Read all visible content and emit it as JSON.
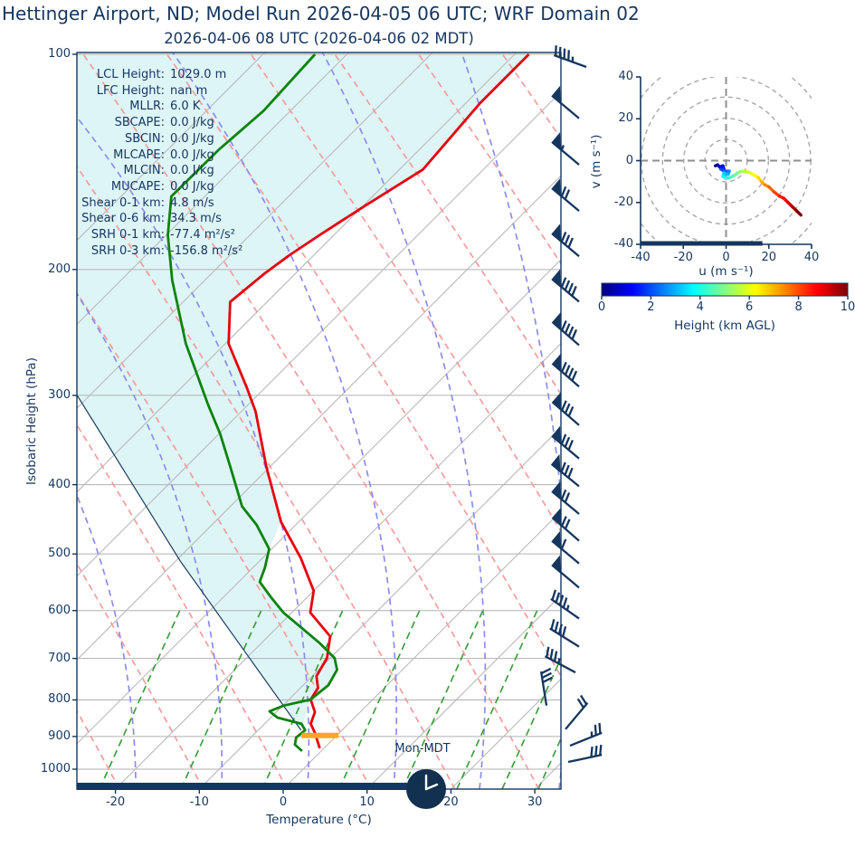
{
  "header": {
    "title": "Hettinger Airport, ND; Model Run 2026-04-05 06 UTC; WRF Domain 02",
    "subtitle": "2026-04-06 08 UTC  (2026-04-06 02 MDT)"
  },
  "colors": {
    "navy": "#15365f",
    "temperature_line": "#e8000d",
    "dewpoint_line": "#0b830b",
    "parcel_line": "#1b3a5f",
    "dry_adiabat": "#f59c9c",
    "moist_adiabat": "#8c8cee",
    "mixing_line": "#3f9f3f",
    "isotherm": "#b9b9b9",
    "pressure_line": "#b0b0b0",
    "shade_fill": "#def5f6",
    "lcl_bar": "#ffa81f",
    "hodo_grid": "#a8a8a8",
    "hodo_cross": "#8f8f8f"
  },
  "skewt": {
    "x_axis": {
      "label": "Temperature (°C)",
      "ticks": [
        -20,
        -10,
        0,
        10,
        20,
        30
      ]
    },
    "y_axis": {
      "label": "Isobaric Height (hPa)",
      "ticks": [
        100,
        200,
        300,
        400,
        500,
        600,
        700,
        800,
        900,
        1000
      ]
    },
    "surface_clock_label": "Mon-MDT",
    "stats": [
      {
        "label": "LCL Height:",
        "value": "1029.0 m"
      },
      {
        "label": "LFC Height:",
        "value": "nan m"
      },
      {
        "label": "MLLR:",
        "value": "6.0 K"
      },
      {
        "label": "SBCAPE:",
        "value": "0.0 J/kg"
      },
      {
        "label": "SBCIN:",
        "value": "0.0 J/kg"
      },
      {
        "label": "MLCAPE:",
        "value": "0.0 J/kg"
      },
      {
        "label": "MLCIN:",
        "value": "0.0 J/kg"
      },
      {
        "label": "MUCAPE:",
        "value": "0.0 J/kg"
      },
      {
        "label": "Shear 0-1 km:",
        "value": "4.8 m/s"
      },
      {
        "label": "Shear 0-6 km:",
        "value": "34.3 m/s"
      },
      {
        "label": "SRH 0-1 km:",
        "value": "-77.4 m²/s²"
      },
      {
        "label": "SRH 0-3 km:",
        "value": "-156.8 m²/s²"
      }
    ]
  },
  "hodograph": {
    "x_axis": {
      "label": "u (m s⁻¹)",
      "ticks": [
        -40,
        -20,
        0,
        20,
        40
      ]
    },
    "y_axis": {
      "label": "v (m s⁻¹)",
      "ticks": [
        40,
        20,
        0,
        -20,
        -40
      ]
    },
    "ring_radii": [
      10,
      20,
      30,
      40,
      50
    ]
  },
  "colorbar": {
    "label": "Height (km AGL)",
    "ticks": [
      0,
      2,
      4,
      6,
      8,
      10
    ]
  },
  "chart_data": {
    "type": "skewt-sounding",
    "pressure_range_hPa": [
      100,
      1070
    ],
    "temperature_range_C": [
      -25,
      33
    ],
    "temperature_profile": [
      [
        100,
        -58.3
      ],
      [
        117,
        -58.3
      ],
      [
        145,
        -57.2
      ],
      [
        163,
        -59.8
      ],
      [
        179,
        -61.7
      ],
      [
        191,
        -62.9
      ],
      [
        203,
        -63.7
      ],
      [
        222,
        -64.4
      ],
      [
        254,
        -59.6
      ],
      [
        292,
        -52.3
      ],
      [
        316,
        -48.3
      ],
      [
        377,
        -40.5
      ],
      [
        451,
        -32.1
      ],
      [
        507,
        -25.4
      ],
      [
        563,
        -20.0
      ],
      [
        604,
        -17.8
      ],
      [
        652,
        -12.6
      ],
      [
        699,
        -10.4
      ],
      [
        741,
        -9.5
      ],
      [
        770,
        -7.9
      ],
      [
        799,
        -7.4
      ],
      [
        832,
        -5.4
      ],
      [
        864,
        -4.5
      ],
      [
        890,
        -2.9
      ],
      [
        935,
        -0.5
      ]
    ],
    "dewpoint_profile": [
      [
        100,
        -83.8
      ],
      [
        120,
        -83.2
      ],
      [
        136,
        -83.9
      ],
      [
        158,
        -84.0
      ],
      [
        179,
        -79.8
      ],
      [
        207,
        -73.9
      ],
      [
        254,
        -64.7
      ],
      [
        309,
        -54.8
      ],
      [
        340,
        -49.8
      ],
      [
        377,
        -44.8
      ],
      [
        429,
        -38.6
      ],
      [
        455,
        -34.7
      ],
      [
        492,
        -30.3
      ],
      [
        522,
        -28.6
      ],
      [
        547,
        -27.5
      ],
      [
        575,
        -24.3
      ],
      [
        604,
        -21.0
      ],
      [
        633,
        -17.2
      ],
      [
        665,
        -13.2
      ],
      [
        699,
        -9.5
      ],
      [
        726,
        -7.8
      ],
      [
        763,
        -7.0
      ],
      [
        799,
        -7.4
      ],
      [
        815,
        -9.9
      ],
      [
        830,
        -10.9
      ],
      [
        847,
        -9.2
      ],
      [
        864,
        -5.6
      ],
      [
        882,
        -4.4
      ],
      [
        903,
        -4.6
      ],
      [
        924,
        -3.9
      ],
      [
        943,
        -2.3
      ]
    ],
    "parcel_profile": [
      [
        882,
        -4.9
      ],
      [
        512,
        -39.4
      ],
      [
        300,
        -71.5
      ]
    ],
    "shade_hints": {
      "red_end_index": 13,
      "green_start_index": 12,
      "green_end_index": 23
    },
    "lcl_marker": {
      "pressure": 897,
      "t_from": -4.2,
      "t_to": 0.2
    },
    "wind_barbs": [
      {
        "p": 100,
        "pennants": 0,
        "fulls": 4,
        "halfs": 1,
        "rot": -160,
        "flip": 1,
        "bx": 648,
        "speed_kt": 45
      },
      {
        "p": 118,
        "pennants": 1,
        "fulls": 0,
        "halfs": 0,
        "rot": -140,
        "flip": 1,
        "bx": 640,
        "speed_kt": 50
      },
      {
        "p": 137,
        "pennants": 1,
        "fulls": 0,
        "halfs": 1,
        "rot": -140,
        "flip": 1,
        "bx": 640,
        "speed_kt": 55
      },
      {
        "p": 159,
        "pennants": 1,
        "fulls": 2,
        "halfs": 0,
        "rot": -140,
        "flip": 1,
        "bx": 640,
        "speed_kt": 70
      },
      {
        "p": 184,
        "pennants": 1,
        "fulls": 3,
        "halfs": 0,
        "rot": -140,
        "flip": 1,
        "bx": 640,
        "speed_kt": 80
      },
      {
        "p": 213,
        "pennants": 1,
        "fulls": 4,
        "halfs": 0,
        "rot": -140,
        "flip": 1,
        "bx": 640,
        "speed_kt": 90
      },
      {
        "p": 245,
        "pennants": 1,
        "fulls": 4,
        "halfs": 0,
        "rot": -139,
        "flip": 1,
        "bx": 640,
        "speed_kt": 90
      },
      {
        "p": 280,
        "pennants": 1,
        "fulls": 4,
        "halfs": 0,
        "rot": -139,
        "flip": 1,
        "bx": 640,
        "speed_kt": 90
      },
      {
        "p": 317,
        "pennants": 1,
        "fulls": 3,
        "halfs": 0,
        "rot": -139,
        "flip": 1,
        "bx": 640,
        "speed_kt": 80
      },
      {
        "p": 353,
        "pennants": 1,
        "fulls": 3,
        "halfs": 0,
        "rot": -140,
        "flip": 1,
        "bx": 640,
        "speed_kt": 80
      },
      {
        "p": 386,
        "pennants": 1,
        "fulls": 3,
        "halfs": 0,
        "rot": -141,
        "flip": 1,
        "bx": 640,
        "speed_kt": 80
      },
      {
        "p": 422,
        "pennants": 1,
        "fulls": 2,
        "halfs": 0,
        "rot": -140,
        "flip": 1,
        "bx": 640,
        "speed_kt": 70
      },
      {
        "p": 460,
        "pennants": 1,
        "fulls": 2,
        "halfs": 0,
        "rot": -139,
        "flip": 1,
        "bx": 640,
        "speed_kt": 70
      },
      {
        "p": 495,
        "pennants": 1,
        "fulls": 1,
        "halfs": 0,
        "rot": -140,
        "flip": 1,
        "bx": 640,
        "speed_kt": 60
      },
      {
        "p": 535,
        "pennants": 1,
        "fulls": 0,
        "halfs": 0,
        "rot": -140,
        "flip": 1,
        "bx": 640,
        "speed_kt": 50
      },
      {
        "p": 591,
        "pennants": 0,
        "fulls": 4,
        "halfs": 1,
        "rot": -145,
        "flip": 1,
        "bx": 640,
        "speed_kt": 45
      },
      {
        "p": 647,
        "pennants": 0,
        "fulls": 4,
        "halfs": 0,
        "rot": -148,
        "flip": 1,
        "bx": 640,
        "speed_kt": 40
      },
      {
        "p": 703,
        "pennants": 0,
        "fulls": 3,
        "halfs": 1,
        "rot": -152,
        "flip": 1,
        "bx": 636,
        "speed_kt": 35
      },
      {
        "p": 782,
        "pennants": 0,
        "fulls": 3,
        "halfs": 0,
        "rot": -99,
        "flip": 1,
        "bx": 604,
        "speed_kt": 30
      },
      {
        "p": 844,
        "pennants": 0,
        "fulls": 2,
        "halfs": 0,
        "rot": -50,
        "flip": -1,
        "bx": 625,
        "speed_kt": 20
      },
      {
        "p": 890,
        "pennants": 0,
        "fulls": 2,
        "halfs": 1,
        "rot": -22,
        "flip": -1,
        "bx": 630,
        "speed_kt": 25
      },
      {
        "p": 938,
        "pennants": 0,
        "fulls": 3,
        "halfs": 0,
        "rot": -12,
        "flip": -1,
        "bx": 628,
        "speed_kt": 30
      }
    ],
    "hodograph_trace_uv": [
      [
        -5,
        -2.5
      ],
      [
        -4,
        -2
      ],
      [
        -3,
        -3
      ],
      [
        -1.5,
        -2.5
      ],
      [
        -1,
        -4
      ],
      [
        -2.5,
        -4
      ],
      [
        -1,
        -5
      ],
      [
        1.5,
        -5
      ],
      [
        1,
        -6.5
      ],
      [
        -1,
        -6
      ],
      [
        -1.5,
        -7.5
      ],
      [
        0,
        -8.5
      ],
      [
        2,
        -8
      ],
      [
        4,
        -7
      ],
      [
        6,
        -5.5
      ],
      [
        8,
        -5
      ],
      [
        10.5,
        -5.5
      ],
      [
        12.5,
        -6.5
      ],
      [
        15,
        -8
      ],
      [
        16.5,
        -10
      ],
      [
        18,
        -11.5
      ],
      [
        20,
        -12.5
      ],
      [
        22.5,
        -15
      ],
      [
        25,
        -17
      ],
      [
        27,
        -18
      ],
      [
        29,
        -20
      ],
      [
        31,
        -22
      ],
      [
        33,
        -24
      ],
      [
        35,
        -26
      ]
    ],
    "hodograph_surface_bar_u": [
      -40,
      17
    ],
    "colorbar_height_km": [
      0,
      10
    ]
  }
}
